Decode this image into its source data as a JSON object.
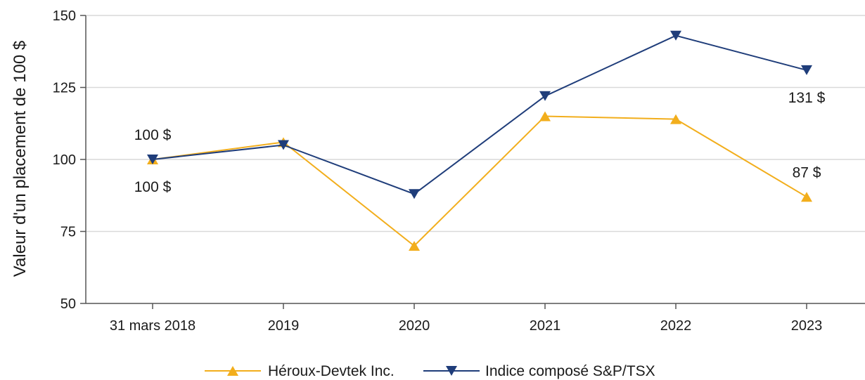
{
  "chart_data": {
    "type": "line",
    "ylabel": "Valeur d'un placement de 100 $",
    "xlabel": "",
    "categories": [
      "31 mars 2018",
      "2019",
      "2020",
      "2021",
      "2022",
      "2023"
    ],
    "ylim": [
      50,
      150
    ],
    "yticks": [
      50,
      75,
      100,
      125,
      150
    ],
    "grid": "horizontal",
    "legend_position": "bottom",
    "series": [
      {
        "name": "Héroux-Devtek Inc.",
        "color": "#F2AE1C",
        "marker": "triangle-up",
        "values": [
          100,
          106,
          70,
          115,
          114,
          87
        ]
      },
      {
        "name": "Indice composé S&P/TSX",
        "color": "#1F3D7A",
        "marker": "triangle-down",
        "values": [
          100,
          105,
          88,
          122,
          143,
          131
        ]
      }
    ],
    "annotations": [
      {
        "text": "100 $",
        "series": 1,
        "index": 0,
        "position": "above"
      },
      {
        "text": "100 $",
        "series": 0,
        "index": 0,
        "position": "below"
      },
      {
        "text": "131 $",
        "series": 1,
        "index": 5,
        "position": "below"
      },
      {
        "text": "87 $",
        "series": 0,
        "index": 5,
        "position": "above"
      }
    ]
  }
}
